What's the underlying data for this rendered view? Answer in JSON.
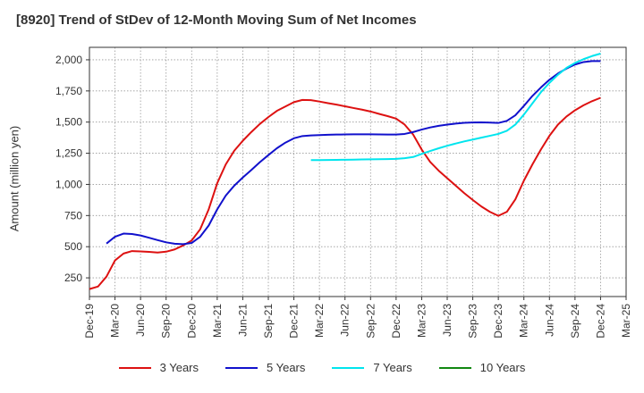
{
  "title": "[8920]  Trend of StDev of 12-Month Moving Sum of Net Incomes",
  "chart_data": {
    "type": "line",
    "title": "[8920]  Trend of StDev of 12-Month Moving Sum of Net Incomes",
    "xlabel": "",
    "ylabel": "Amount (million yen)",
    "ylim": [
      100,
      2100
    ],
    "y_ticks": [
      250,
      500,
      750,
      1000,
      1250,
      1500,
      1750,
      2000
    ],
    "y_tick_labels": [
      "250",
      "500",
      "750",
      "1,000",
      "1,250",
      "1,500",
      "1,750",
      "2,000"
    ],
    "x_tick_labels": [
      "Dec-19",
      "Mar-20",
      "Jun-20",
      "Sep-20",
      "Dec-20",
      "Mar-21",
      "Jun-21",
      "Sep-21",
      "Dec-21",
      "Mar-22",
      "Jun-22",
      "Sep-22",
      "Dec-22",
      "Mar-23",
      "Jun-23",
      "Sep-23",
      "Dec-23",
      "Mar-24",
      "Jun-24",
      "Sep-24",
      "Dec-24",
      "Mar-25"
    ],
    "grid": true,
    "legend_position": "bottom",
    "series": [
      {
        "name": "3 Years",
        "color": "#dd1111",
        "points": [
          [
            "2019-12",
            160
          ],
          [
            "2020-01",
            180
          ],
          [
            "2020-02",
            260
          ],
          [
            "2020-03",
            390
          ],
          [
            "2020-04",
            445
          ],
          [
            "2020-05",
            465
          ],
          [
            "2020-06",
            462
          ],
          [
            "2020-07",
            458
          ],
          [
            "2020-08",
            453
          ],
          [
            "2020-09",
            460
          ],
          [
            "2020-10",
            478
          ],
          [
            "2020-11",
            510
          ],
          [
            "2020-12",
            550
          ],
          [
            "2021-01",
            640
          ],
          [
            "2021-02",
            800
          ],
          [
            "2021-03",
            1010
          ],
          [
            "2021-04",
            1160
          ],
          [
            "2021-05",
            1270
          ],
          [
            "2021-06",
            1350
          ],
          [
            "2021-07",
            1420
          ],
          [
            "2021-08",
            1485
          ],
          [
            "2021-09",
            1540
          ],
          [
            "2021-10",
            1590
          ],
          [
            "2021-11",
            1625
          ],
          [
            "2021-12",
            1660
          ],
          [
            "2022-01",
            1678
          ],
          [
            "2022-02",
            1676
          ],
          [
            "2022-03",
            1665
          ],
          [
            "2022-04",
            1652
          ],
          [
            "2022-05",
            1640
          ],
          [
            "2022-06",
            1627
          ],
          [
            "2022-07",
            1613
          ],
          [
            "2022-08",
            1600
          ],
          [
            "2022-09",
            1585
          ],
          [
            "2022-10",
            1566
          ],
          [
            "2022-11",
            1548
          ],
          [
            "2022-12",
            1528
          ],
          [
            "2023-01",
            1480
          ],
          [
            "2023-02",
            1400
          ],
          [
            "2023-03",
            1280
          ],
          [
            "2023-04",
            1180
          ],
          [
            "2023-05",
            1110
          ],
          [
            "2023-06",
            1050
          ],
          [
            "2023-07",
            990
          ],
          [
            "2023-08",
            930
          ],
          [
            "2023-09",
            875
          ],
          [
            "2023-10",
            823
          ],
          [
            "2023-11",
            780
          ],
          [
            "2023-12",
            748
          ],
          [
            "2024-01",
            780
          ],
          [
            "2024-02",
            880
          ],
          [
            "2024-03",
            1030
          ],
          [
            "2024-04",
            1160
          ],
          [
            "2024-05",
            1280
          ],
          [
            "2024-06",
            1390
          ],
          [
            "2024-07",
            1480
          ],
          [
            "2024-08",
            1545
          ],
          [
            "2024-09",
            1595
          ],
          [
            "2024-10",
            1635
          ],
          [
            "2024-11",
            1668
          ],
          [
            "2024-12",
            1695
          ]
        ]
      },
      {
        "name": "5 Years",
        "color": "#1111cc",
        "points": [
          [
            "2020-02",
            525
          ],
          [
            "2020-03",
            580
          ],
          [
            "2020-04",
            605
          ],
          [
            "2020-05",
            602
          ],
          [
            "2020-06",
            590
          ],
          [
            "2020-07",
            572
          ],
          [
            "2020-08",
            553
          ],
          [
            "2020-09",
            535
          ],
          [
            "2020-10",
            524
          ],
          [
            "2020-11",
            520
          ],
          [
            "2020-12",
            530
          ],
          [
            "2021-01",
            580
          ],
          [
            "2021-02",
            670
          ],
          [
            "2021-03",
            800
          ],
          [
            "2021-04",
            910
          ],
          [
            "2021-05",
            990
          ],
          [
            "2021-06",
            1055
          ],
          [
            "2021-07",
            1115
          ],
          [
            "2021-08",
            1178
          ],
          [
            "2021-09",
            1235
          ],
          [
            "2021-10",
            1290
          ],
          [
            "2021-11",
            1335
          ],
          [
            "2021-12",
            1370
          ],
          [
            "2022-01",
            1388
          ],
          [
            "2022-02",
            1393
          ],
          [
            "2022-03",
            1396
          ],
          [
            "2022-04",
            1398
          ],
          [
            "2022-05",
            1400
          ],
          [
            "2022-06",
            1401
          ],
          [
            "2022-07",
            1402
          ],
          [
            "2022-08",
            1402
          ],
          [
            "2022-09",
            1402
          ],
          [
            "2022-10",
            1401
          ],
          [
            "2022-11",
            1400
          ],
          [
            "2022-12",
            1400
          ],
          [
            "2023-01",
            1405
          ],
          [
            "2023-02",
            1420
          ],
          [
            "2023-03",
            1440
          ],
          [
            "2023-04",
            1457
          ],
          [
            "2023-05",
            1470
          ],
          [
            "2023-06",
            1480
          ],
          [
            "2023-07",
            1488
          ],
          [
            "2023-08",
            1494
          ],
          [
            "2023-09",
            1497
          ],
          [
            "2023-10",
            1498
          ],
          [
            "2023-11",
            1496
          ],
          [
            "2023-12",
            1493
          ],
          [
            "2024-01",
            1510
          ],
          [
            "2024-02",
            1555
          ],
          [
            "2024-03",
            1630
          ],
          [
            "2024-04",
            1710
          ],
          [
            "2024-05",
            1778
          ],
          [
            "2024-06",
            1840
          ],
          [
            "2024-07",
            1890
          ],
          [
            "2024-08",
            1930
          ],
          [
            "2024-09",
            1962
          ],
          [
            "2024-10",
            1982
          ],
          [
            "2024-11",
            1990
          ],
          [
            "2024-12",
            1990
          ]
        ]
      },
      {
        "name": "7 Years",
        "color": "#00e5ee",
        "points": [
          [
            "2022-02",
            1195
          ],
          [
            "2022-03",
            1195
          ],
          [
            "2022-04",
            1196
          ],
          [
            "2022-05",
            1197
          ],
          [
            "2022-06",
            1198
          ],
          [
            "2022-07",
            1199
          ],
          [
            "2022-08",
            1200
          ],
          [
            "2022-09",
            1201
          ],
          [
            "2022-10",
            1202
          ],
          [
            "2022-11",
            1203
          ],
          [
            "2022-12",
            1205
          ],
          [
            "2023-01",
            1210
          ],
          [
            "2023-02",
            1220
          ],
          [
            "2023-03",
            1245
          ],
          [
            "2023-04",
            1268
          ],
          [
            "2023-05",
            1290
          ],
          [
            "2023-06",
            1310
          ],
          [
            "2023-07",
            1328
          ],
          [
            "2023-08",
            1345
          ],
          [
            "2023-09",
            1360
          ],
          [
            "2023-10",
            1375
          ],
          [
            "2023-11",
            1390
          ],
          [
            "2023-12",
            1405
          ],
          [
            "2024-01",
            1430
          ],
          [
            "2024-02",
            1480
          ],
          [
            "2024-03",
            1560
          ],
          [
            "2024-04",
            1650
          ],
          [
            "2024-05",
            1740
          ],
          [
            "2024-06",
            1815
          ],
          [
            "2024-07",
            1880
          ],
          [
            "2024-08",
            1935
          ],
          [
            "2024-09",
            1975
          ],
          [
            "2024-10",
            2005
          ],
          [
            "2024-11",
            2030
          ],
          [
            "2024-12",
            2050
          ]
        ]
      },
      {
        "name": "10 Years",
        "color": "#118811",
        "points": []
      }
    ]
  }
}
